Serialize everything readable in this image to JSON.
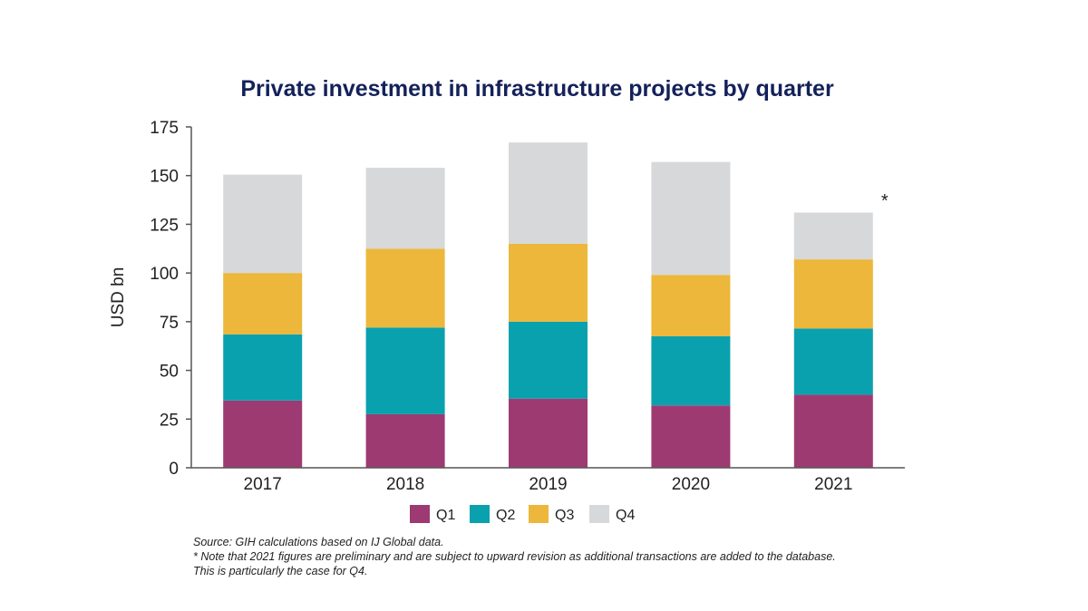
{
  "chart_data": {
    "type": "bar",
    "stacked": true,
    "title": "Private investment in infrastructure projects by quarter",
    "xlabel": "",
    "ylabel": "USD bn",
    "ylim": [
      0,
      175
    ],
    "yticks": [
      0,
      25,
      50,
      75,
      100,
      125,
      150,
      175
    ],
    "categories": [
      "2017",
      "2018",
      "2019",
      "2020",
      "2021"
    ],
    "series": [
      {
        "name": "Q1",
        "color": "#9e3a72",
        "values": [
          34.5,
          27.5,
          35.5,
          32,
          37.5
        ]
      },
      {
        "name": "Q2",
        "color": "#0aa1ae",
        "values": [
          34,
          44.5,
          39.5,
          35.5,
          34
        ]
      },
      {
        "name": "Q3",
        "color": "#ecb73a",
        "values": [
          31.5,
          40.5,
          40,
          31.5,
          35.5
        ]
      },
      {
        "name": "Q4",
        "color": "#d7d8da",
        "values": [
          50.5,
          41.5,
          52,
          58,
          24
        ]
      }
    ],
    "annotations": [
      {
        "category": "2021",
        "text": "*"
      }
    ],
    "legend": "bottom-center",
    "grid": false
  },
  "notes": {
    "source": "Source: GIH calculations based on IJ Global data.",
    "note_line1": "* Note that 2021 figures are preliminary and are subject to upward revision as additional transactions are added to the database.",
    "note_line2": "This is particularly the case for Q4."
  }
}
